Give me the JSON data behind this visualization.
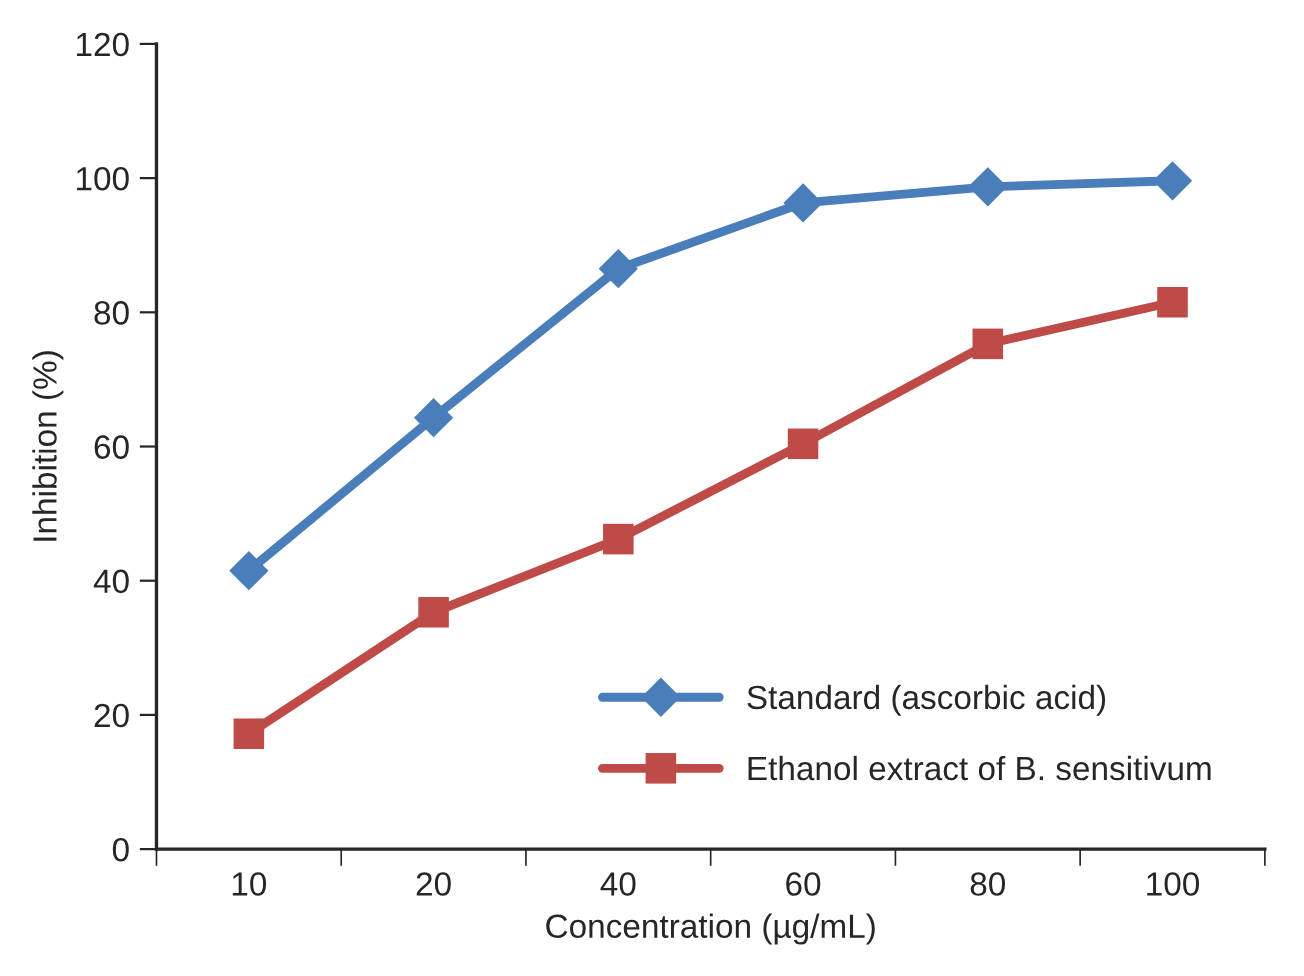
{
  "chart_data": {
    "type": "line",
    "xlabel": "Concentration (µg/mL)",
    "ylabel": "Inhibition (%)",
    "categories": [
      "10",
      "20",
      "40",
      "60",
      "80",
      "100"
    ],
    "series": [
      {
        "name": "Standard (ascorbic acid)",
        "color": "#4a7ebb",
        "marker": "diamond",
        "values": [
          41.5,
          64.3,
          86.5,
          96.3,
          98.7,
          99.6
        ]
      },
      {
        "name": "Ethanol extract of B. sensitivum",
        "color": "#be4b48",
        "marker": "square",
        "values": [
          17.2,
          35.3,
          46.2,
          60.4,
          75.3,
          81.5
        ]
      }
    ],
    "ylim": [
      0,
      120
    ],
    "yticks": [
      0,
      20,
      40,
      60,
      80,
      100,
      120
    ],
    "grid": false,
    "legend": "bottom right",
    "line_style": "solid"
  }
}
